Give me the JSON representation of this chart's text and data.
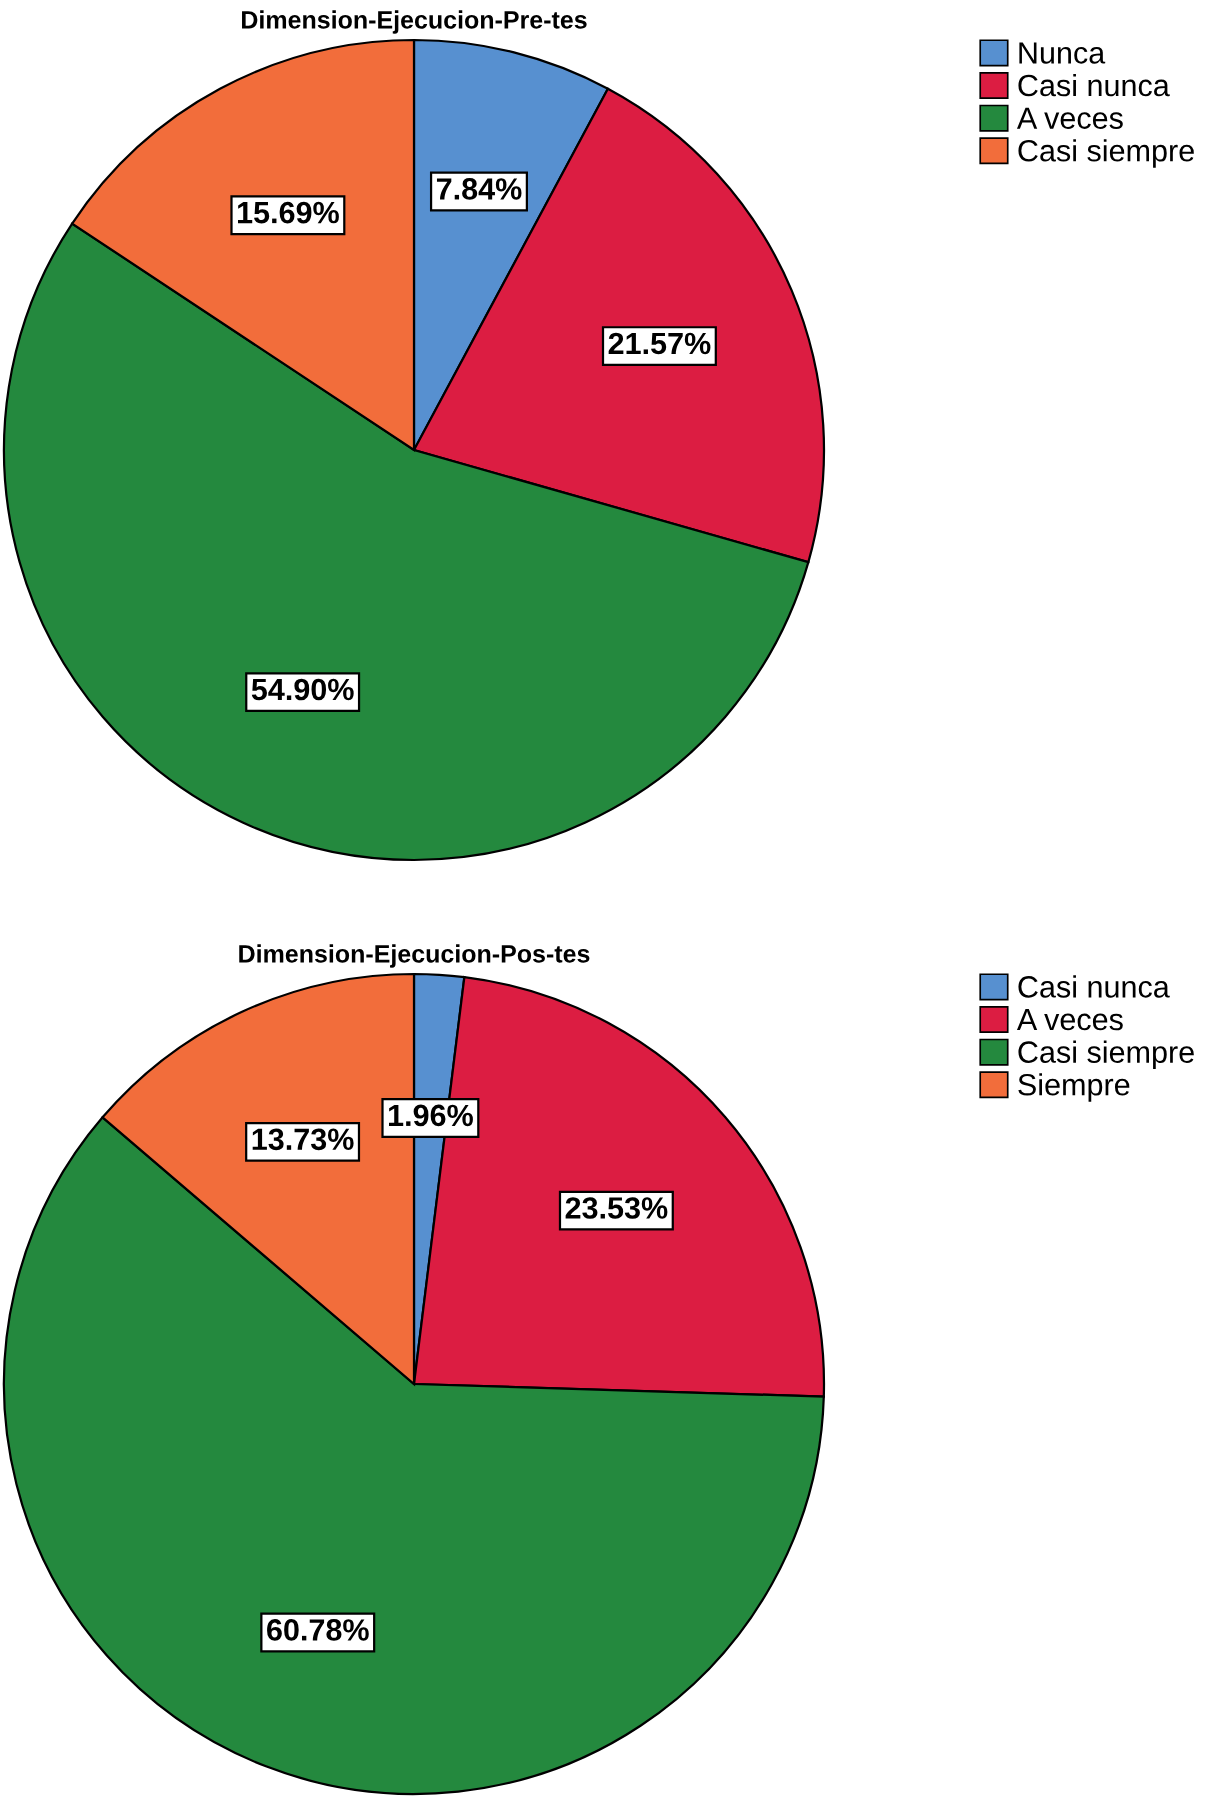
{
  "chart_data": [
    {
      "type": "pie",
      "title": "Dimension-Ejecucion-Pre-tes",
      "categories": [
        "Nunca",
        "Casi nunca",
        "A veces",
        "Casi siempre"
      ],
      "values": [
        7.84,
        21.57,
        54.9,
        15.69
      ],
      "value_labels": [
        "7.84%",
        "21.57%",
        "54.90%",
        "15.69%"
      ],
      "colors": [
        "#5790d0",
        "#dc1d42",
        "#24893e",
        "#f26d3b"
      ],
      "legend": "top right"
    },
    {
      "type": "pie",
      "title": "Dimension-Ejecucion-Pos-tes",
      "categories": [
        "Casi nunca",
        "A veces",
        "Casi siempre",
        "Siempre"
      ],
      "values": [
        1.96,
        23.53,
        60.78,
        13.73
      ],
      "value_labels": [
        "1.96%",
        "23.53%",
        "60.78%",
        "13.73%"
      ],
      "colors": [
        "#5790d0",
        "#dc1d42",
        "#24893e",
        "#f26d3b"
      ],
      "legend": "top right"
    }
  ]
}
